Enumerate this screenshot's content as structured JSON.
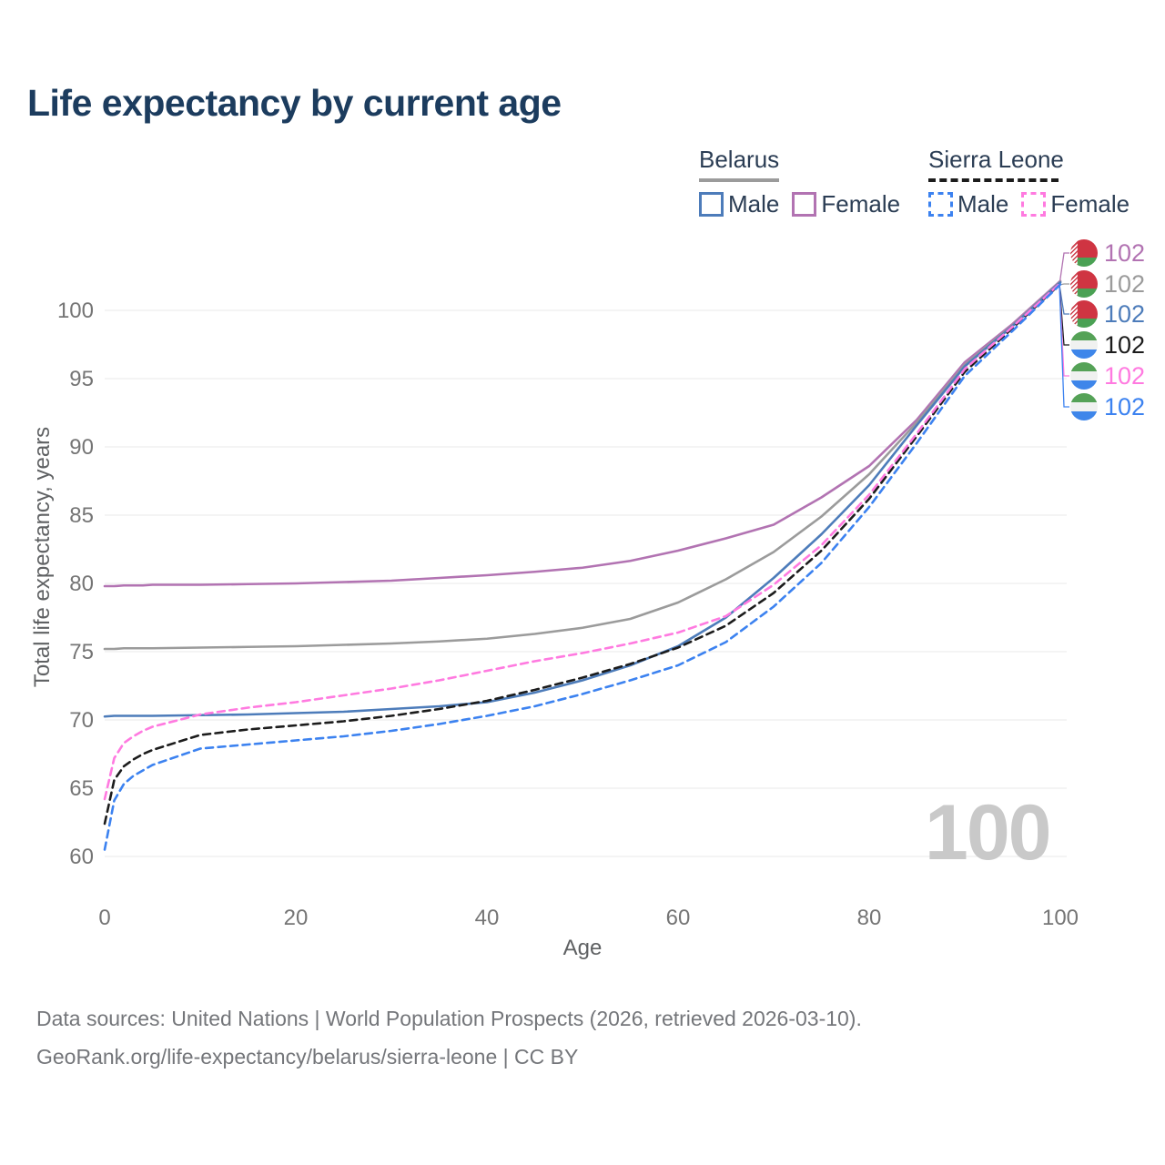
{
  "title": "Life expectancy by current age",
  "watermark": {
    "label": "100"
  },
  "legend": {
    "groups": [
      {
        "country": "Belarus",
        "line_style": "solid",
        "line_color": "#9b9b9b",
        "items": [
          {
            "label": "Male",
            "color": "#4d7cba",
            "dashed": false
          },
          {
            "label": "Female",
            "color": "#b273b2",
            "dashed": false
          }
        ]
      },
      {
        "country": "Sierra Leone",
        "line_style": "dashed",
        "line_color": "#1c1c1c",
        "items": [
          {
            "label": "Male",
            "color": "#3c82f0",
            "dashed": true
          },
          {
            "label": "Female",
            "color": "#ff7ae0",
            "dashed": true
          }
        ]
      }
    ]
  },
  "footer": {
    "line1": "Data sources: United Nations | World Population Prospects (2026, retrieved 2026-03-10).",
    "line2": "GeoRank.org/life-expectancy/belarus/sierra-leone | CC BY"
  },
  "chart_data": {
    "type": "line",
    "title": "Life expectancy by current age",
    "xlabel": "Age",
    "ylabel": "Total life expectancy, years",
    "xlim": [
      0,
      100
    ],
    "ylim": [
      60,
      102.7
    ],
    "x_ticks": [
      0,
      20,
      40,
      60,
      80,
      100
    ],
    "y_ticks": [
      60,
      65,
      70,
      75,
      80,
      85,
      90,
      95,
      100
    ],
    "grid": "horizontal",
    "legend_position": "top-right",
    "x": [
      0,
      1,
      2,
      3,
      4,
      5,
      10,
      15,
      20,
      25,
      30,
      35,
      40,
      45,
      50,
      55,
      60,
      65,
      70,
      75,
      80,
      85,
      90,
      95,
      100
    ],
    "series": [
      {
        "key": "belarus-female",
        "name": "Belarus Female",
        "country": "Belarus",
        "sex": "Female",
        "color": "#b273b2",
        "dashed": false,
        "flag": "belarus",
        "end_label": "102",
        "values": [
          79.8,
          79.8,
          79.85,
          79.85,
          79.85,
          79.9,
          79.9,
          79.95,
          80.0,
          80.1,
          80.2,
          80.4,
          80.6,
          80.85,
          81.15,
          81.65,
          82.4,
          83.3,
          84.3,
          86.3,
          88.6,
          92.0,
          96.2,
          99.0,
          102.15
        ]
      },
      {
        "key": "belarus-both",
        "name": "Belarus Both sexes",
        "country": "Belarus",
        "sex": "Both",
        "color": "#9b9b9b",
        "dashed": false,
        "flag": "belarus",
        "end_label": "102",
        "values": [
          75.2,
          75.2,
          75.25,
          75.25,
          75.25,
          75.25,
          75.3,
          75.35,
          75.4,
          75.5,
          75.6,
          75.75,
          75.95,
          76.3,
          76.75,
          77.4,
          78.6,
          80.3,
          82.3,
          84.9,
          88.0,
          91.8,
          96.0,
          98.9,
          102.1
        ]
      },
      {
        "key": "belarus-male",
        "name": "Belarus Male",
        "country": "Belarus",
        "sex": "Male",
        "color": "#4d7cba",
        "dashed": false,
        "flag": "belarus",
        "end_label": "102",
        "values": [
          70.25,
          70.3,
          70.3,
          70.3,
          70.3,
          70.3,
          70.35,
          70.4,
          70.5,
          70.6,
          70.8,
          71.0,
          71.3,
          72.0,
          72.9,
          74.0,
          75.4,
          77.5,
          80.4,
          83.6,
          87.2,
          91.6,
          95.9,
          98.85,
          102.05
        ]
      },
      {
        "key": "sierra-leone-both",
        "name": "Sierra Leone Both sexes",
        "country": "Sierra Leone",
        "sex": "Both",
        "color": "#1c1c1c",
        "dashed": true,
        "flag": "sierra-leone",
        "end_label": "102",
        "values": [
          62.4,
          65.6,
          66.6,
          67.1,
          67.5,
          67.8,
          68.9,
          69.3,
          69.6,
          69.9,
          70.3,
          70.8,
          71.4,
          72.2,
          73.1,
          74.1,
          75.3,
          76.9,
          79.3,
          82.4,
          86.2,
          90.8,
          95.5,
          98.7,
          101.95
        ]
      },
      {
        "key": "sierra-leone-female",
        "name": "Sierra Leone Female",
        "country": "Sierra Leone",
        "sex": "Female",
        "color": "#ff7ae0",
        "dashed": true,
        "flag": "sierra-leone",
        "end_label": "102",
        "values": [
          64.2,
          67.2,
          68.3,
          68.8,
          69.2,
          69.5,
          70.4,
          70.9,
          71.3,
          71.8,
          72.3,
          72.9,
          73.6,
          74.3,
          74.9,
          75.6,
          76.4,
          77.6,
          79.9,
          82.8,
          86.5,
          91.0,
          95.7,
          98.8,
          102.0
        ]
      },
      {
        "key": "sierra-leone-male",
        "name": "Sierra Leone Male",
        "country": "Sierra Leone",
        "sex": "Male",
        "color": "#3c82f0",
        "dashed": true,
        "flag": "sierra-leone",
        "end_label": "102",
        "values": [
          60.5,
          64.1,
          65.3,
          65.9,
          66.3,
          66.7,
          67.9,
          68.2,
          68.5,
          68.8,
          69.2,
          69.7,
          70.3,
          71.0,
          71.9,
          72.9,
          74.0,
          75.7,
          78.3,
          81.5,
          85.6,
          90.3,
          95.2,
          98.5,
          101.9
        ]
      }
    ]
  }
}
